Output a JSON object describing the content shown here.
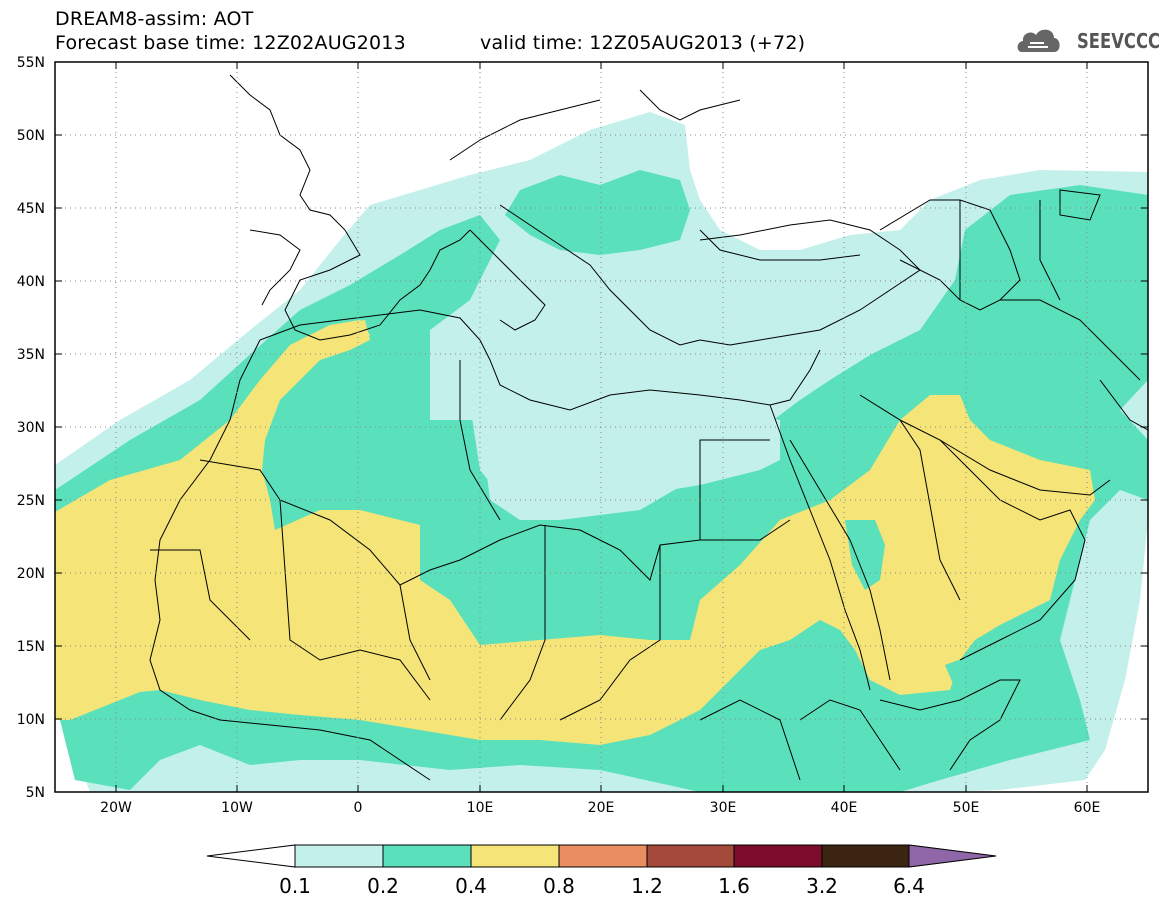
{
  "header": {
    "line1": "DREAM8-assim: AOT",
    "line2": "Forecast base time: 12Z02AUG2013",
    "line3": "valid time: 12Z05AUG2013 (+72)"
  },
  "logo": {
    "text": "SEEVCCC",
    "icon": "cloud-icon"
  },
  "map": {
    "lon_range": [
      -25,
      65
    ],
    "lat_range": [
      5,
      55
    ],
    "lat_ticks": [
      "55N",
      "50N",
      "45N",
      "40N",
      "35N",
      "30N",
      "25N",
      "20N",
      "15N",
      "10N",
      "5N"
    ],
    "lon_ticks": [
      "20W",
      "10W",
      "0",
      "10E",
      "20E",
      "30E",
      "40E",
      "50E",
      "60E"
    ],
    "grid": "dotted"
  },
  "colorbar": {
    "labels": [
      "0.1",
      "0.2",
      "0.4",
      "0.8",
      "1.2",
      "1.6",
      "3.2",
      "6.4"
    ],
    "colors": [
      "#ffffff",
      "#c3f0eb",
      "#5ae0bb",
      "#f5e478",
      "#e88e62",
      "#a34a3d",
      "#7c0b2c",
      "#3c2412",
      "#8f67a7"
    ]
  }
}
